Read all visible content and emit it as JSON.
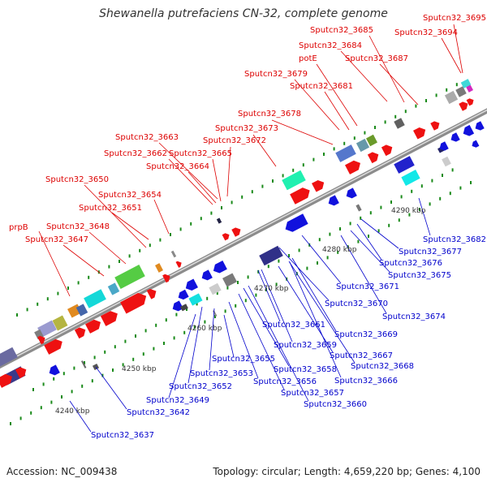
{
  "title": "Shewanella putrefaciens CN-32, complete genome",
  "accession": "Accession: NC_009438",
  "summary": "Topology: circular; Length: 4,659,220 bp; Genes: 4,100",
  "colors": {
    "backbone": "#999999",
    "forward_gene": "#ee1111",
    "reverse_gene": "#1111dd",
    "forward_label": "#dd0000",
    "reverse_label": "#0000cc",
    "tick": "#1a8a1a"
  },
  "kbp_labels": [
    "4240 kbp",
    "4250 kbp",
    "4260 kbp",
    "4270 kbp",
    "4280 kbp",
    "4290 kbp"
  ],
  "forward_labels": [
    "prpB",
    "Sputcn32_3647",
    "Sputcn32_3648",
    "Sputcn32_3650",
    "Sputcn32_3651",
    "Sputcn32_3654",
    "Sputcn32_3662",
    "Sputcn32_3663",
    "Sputcn32_3664",
    "Sputcn32_3665",
    "Sputcn32_3672",
    "Sputcn32_3673",
    "Sputcn32_3678",
    "Sputcn32_3679",
    "Sputcn32_3681",
    "potE",
    "Sputcn32_3684",
    "Sputcn32_3685",
    "Sputcn32_3687",
    "Sputcn32_3694",
    "Sputcn32_3695"
  ],
  "reverse_labels": [
    "Sputcn32_3637",
    "Sputcn32_3642",
    "Sputcn32_3649",
    "Sputcn32_3652",
    "Sputcn32_3653",
    "Sputcn32_3655",
    "Sputcn32_3656",
    "Sputcn32_3657",
    "Sputcn32_3658",
    "Sputcn32_3659",
    "Sputcn32_3660",
    "Sputcn32_3661",
    "Sputcn32_3666",
    "Sputcn32_3667",
    "Sputcn32_3668",
    "Sputcn32_3669",
    "Sputcn32_3670",
    "Sputcn32_3671",
    "Sputcn32_3674",
    "Sputcn32_3675",
    "Sputcn32_3676",
    "Sputcn32_3677",
    "Sputcn32_3682"
  ]
}
